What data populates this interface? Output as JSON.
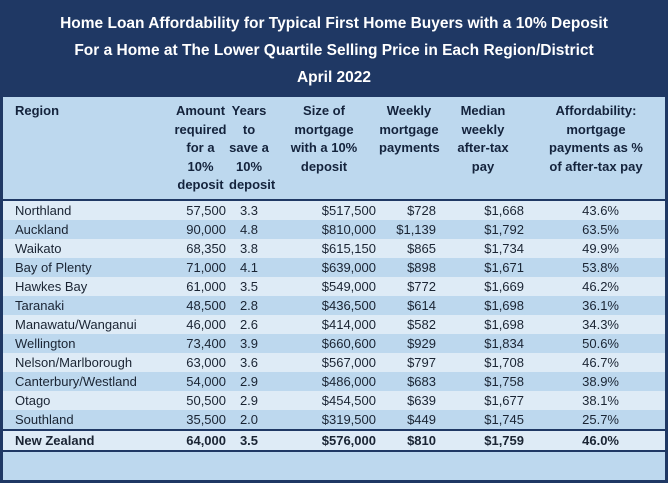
{
  "title": {
    "line1": "Home Loan Affordability for Typical First Home Buyers with a 10% Deposit",
    "line2": "For a Home at The Lower Quartile Selling Price in Each Region/District",
    "line3": "April 2022"
  },
  "colors": {
    "navy": "#1F3864",
    "title_text": "#FFFFFF",
    "header_blue": "#BDD8EE",
    "row_pale": "#DEEBF6",
    "row_blue": "#BDD8EE",
    "body_text": "#1A2433"
  },
  "chart_data": {
    "type": "table",
    "title": "Home Loan Affordability for Typical First Home Buyers with a 10% Deposit For a Home at The Lower Quartile Selling Price in Each Region/District April 2022",
    "columns": [
      {
        "label": "Region"
      },
      {
        "label": "Amount\nrequired\nfor a 10%\ndeposit"
      },
      {
        "label": "Years to\nsave a\n10%\ndeposit"
      },
      {
        "label": "Size of\nmortgage\nwith a 10%\ndeposit"
      },
      {
        "label": "Weekly\nmortgage\npayments"
      },
      {
        "label": "Median\nweekly\nafter-tax\npay"
      },
      {
        "label": "Affordability:\nmortgage\npayments as %\nof after-tax pay"
      }
    ],
    "rows": [
      {
        "region": "Northland",
        "amount": "57,500",
        "years": "3.3",
        "mortgage": "$517,500",
        "weekly": "$728",
        "median": "$1,668",
        "affordability": "43.6%"
      },
      {
        "region": "Auckland",
        "amount": "90,000",
        "years": "4.8",
        "mortgage": "$810,000",
        "weekly": "$1,139",
        "median": "$1,792",
        "affordability": "63.5%"
      },
      {
        "region": "Waikato",
        "amount": "68,350",
        "years": "3.8",
        "mortgage": "$615,150",
        "weekly": "$865",
        "median": "$1,734",
        "affordability": "49.9%"
      },
      {
        "region": "Bay of Plenty",
        "amount": "71,000",
        "years": "4.1",
        "mortgage": "$639,000",
        "weekly": "$898",
        "median": "$1,671",
        "affordability": "53.8%"
      },
      {
        "region": "Hawkes Bay",
        "amount": "61,000",
        "years": "3.5",
        "mortgage": "$549,000",
        "weekly": "$772",
        "median": "$1,669",
        "affordability": "46.2%"
      },
      {
        "region": "Taranaki",
        "amount": "48,500",
        "years": "2.8",
        "mortgage": "$436,500",
        "weekly": "$614",
        "median": "$1,698",
        "affordability": "36.1%"
      },
      {
        "region": "Manawatu/Wanganui",
        "amount": "46,000",
        "years": "2.6",
        "mortgage": "$414,000",
        "weekly": "$582",
        "median": "$1,698",
        "affordability": "34.3%"
      },
      {
        "region": "Wellington",
        "amount": "73,400",
        "years": "3.9",
        "mortgage": "$660,600",
        "weekly": "$929",
        "median": "$1,834",
        "affordability": "50.6%"
      },
      {
        "region": "Nelson/Marlborough",
        "amount": "63,000",
        "years": "3.6",
        "mortgage": "$567,000",
        "weekly": "$797",
        "median": "$1,708",
        "affordability": "46.7%"
      },
      {
        "region": "Canterbury/Westland",
        "amount": "54,000",
        "years": "2.9",
        "mortgage": "$486,000",
        "weekly": "$683",
        "median": "$1,758",
        "affordability": "38.9%"
      },
      {
        "region": "Otago",
        "amount": "50,500",
        "years": "2.9",
        "mortgage": "$454,500",
        "weekly": "$639",
        "median": "$1,677",
        "affordability": "38.1%"
      },
      {
        "region": "Southland",
        "amount": "35,500",
        "years": "2.0",
        "mortgage": "$319,500",
        "weekly": "$449",
        "median": "$1,745",
        "affordability": "25.7%"
      }
    ],
    "total_row": {
      "region": "New Zealand",
      "amount": "64,000",
      "years": "3.5",
      "mortgage": "$576,000",
      "weekly": "$810",
      "median": "$1,759",
      "affordability": "46.0%"
    }
  }
}
